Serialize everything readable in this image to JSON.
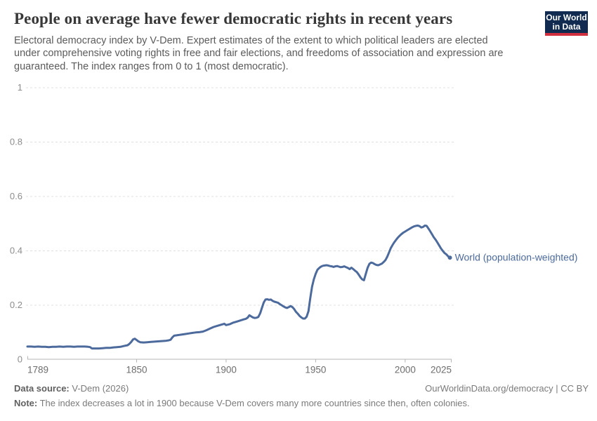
{
  "header": {
    "title": "People on average have fewer democratic rights in recent years",
    "subtitle": "Electoral democracy index by V-Dem. Expert estimates of the extent to which political leaders are elected\nunder comprehensive voting rights in free and fair elections, and freedoms of association and expression are\nguaranteed. The index ranges from 0 to 1 (most democratic).",
    "logo": {
      "line1": "Our World",
      "line2": "in Data",
      "bg_color": "#102a50",
      "accent_color": "#cf2f3f"
    }
  },
  "chart_data": {
    "type": "line",
    "title": "",
    "xlabel": "",
    "ylabel": "",
    "xlim": [
      1789,
      2026
    ],
    "ylim": [
      0,
      1
    ],
    "x_ticks": [
      1789,
      1850,
      1900,
      1950,
      2000,
      2025
    ],
    "y_ticks": [
      0,
      0.2,
      0.4,
      0.6,
      0.8,
      1
    ],
    "grid": "horizontal-dashed",
    "legend_position": "end-of-line-label",
    "series": [
      {
        "name": "World (population-weighted)",
        "color": "#4c6a9c",
        "points": [
          [
            1789,
            0.048
          ],
          [
            1791,
            0.048
          ],
          [
            1793,
            0.047
          ],
          [
            1795,
            0.048
          ],
          [
            1797,
            0.047
          ],
          [
            1799,
            0.047
          ],
          [
            1801,
            0.046
          ],
          [
            1803,
            0.047
          ],
          [
            1805,
            0.047
          ],
          [
            1807,
            0.048
          ],
          [
            1809,
            0.047
          ],
          [
            1811,
            0.048
          ],
          [
            1813,
            0.048
          ],
          [
            1815,
            0.047
          ],
          [
            1817,
            0.048
          ],
          [
            1819,
            0.048
          ],
          [
            1821,
            0.048
          ],
          [
            1823,
            0.047
          ],
          [
            1824,
            0.046
          ],
          [
            1825,
            0.041
          ],
          [
            1827,
            0.041
          ],
          [
            1829,
            0.041
          ],
          [
            1831,
            0.042
          ],
          [
            1833,
            0.043
          ],
          [
            1835,
            0.043
          ],
          [
            1837,
            0.045
          ],
          [
            1839,
            0.046
          ],
          [
            1841,
            0.047
          ],
          [
            1843,
            0.05
          ],
          [
            1845,
            0.053
          ],
          [
            1846,
            0.058
          ],
          [
            1847,
            0.065
          ],
          [
            1848,
            0.074
          ],
          [
            1849,
            0.077
          ],
          [
            1850,
            0.072
          ],
          [
            1851,
            0.067
          ],
          [
            1852,
            0.064
          ],
          [
            1854,
            0.063
          ],
          [
            1856,
            0.064
          ],
          [
            1858,
            0.065
          ],
          [
            1860,
            0.066
          ],
          [
            1862,
            0.067
          ],
          [
            1864,
            0.068
          ],
          [
            1866,
            0.069
          ],
          [
            1868,
            0.071
          ],
          [
            1869,
            0.073
          ],
          [
            1870,
            0.082
          ],
          [
            1871,
            0.088
          ],
          [
            1873,
            0.09
          ],
          [
            1875,
            0.092
          ],
          [
            1877,
            0.094
          ],
          [
            1879,
            0.096
          ],
          [
            1881,
            0.098
          ],
          [
            1883,
            0.1
          ],
          [
            1885,
            0.101
          ],
          [
            1887,
            0.103
          ],
          [
            1889,
            0.108
          ],
          [
            1891,
            0.114
          ],
          [
            1893,
            0.12
          ],
          [
            1895,
            0.124
          ],
          [
            1897,
            0.128
          ],
          [
            1899,
            0.132
          ],
          [
            1900,
            0.127
          ],
          [
            1902,
            0.13
          ],
          [
            1904,
            0.136
          ],
          [
            1906,
            0.14
          ],
          [
            1908,
            0.144
          ],
          [
            1910,
            0.148
          ],
          [
            1911,
            0.15
          ],
          [
            1912,
            0.154
          ],
          [
            1913,
            0.163
          ],
          [
            1914,
            0.159
          ],
          [
            1915,
            0.155
          ],
          [
            1916,
            0.153
          ],
          [
            1917,
            0.154
          ],
          [
            1918,
            0.157
          ],
          [
            1919,
            0.17
          ],
          [
            1920,
            0.19
          ],
          [
            1921,
            0.21
          ],
          [
            1922,
            0.221
          ],
          [
            1923,
            0.222
          ],
          [
            1924,
            0.22
          ],
          [
            1925,
            0.221
          ],
          [
            1926,
            0.216
          ],
          [
            1927,
            0.213
          ],
          [
            1928,
            0.211
          ],
          [
            1929,
            0.209
          ],
          [
            1930,
            0.204
          ],
          [
            1931,
            0.2
          ],
          [
            1932,
            0.196
          ],
          [
            1933,
            0.192
          ],
          [
            1934,
            0.19
          ],
          [
            1935,
            0.193
          ],
          [
            1936,
            0.197
          ],
          [
            1937,
            0.193
          ],
          [
            1938,
            0.186
          ],
          [
            1939,
            0.176
          ],
          [
            1940,
            0.169
          ],
          [
            1941,
            0.161
          ],
          [
            1942,
            0.155
          ],
          [
            1943,
            0.151
          ],
          [
            1944,
            0.151
          ],
          [
            1945,
            0.158
          ],
          [
            1946,
            0.178
          ],
          [
            1947,
            0.225
          ],
          [
            1948,
            0.268
          ],
          [
            1949,
            0.295
          ],
          [
            1950,
            0.315
          ],
          [
            1951,
            0.33
          ],
          [
            1952,
            0.337
          ],
          [
            1953,
            0.342
          ],
          [
            1954,
            0.345
          ],
          [
            1955,
            0.346
          ],
          [
            1956,
            0.347
          ],
          [
            1957,
            0.346
          ],
          [
            1958,
            0.344
          ],
          [
            1959,
            0.343
          ],
          [
            1960,
            0.341
          ],
          [
            1961,
            0.343
          ],
          [
            1962,
            0.344
          ],
          [
            1963,
            0.342
          ],
          [
            1964,
            0.34
          ],
          [
            1965,
            0.341
          ],
          [
            1966,
            0.343
          ],
          [
            1967,
            0.34
          ],
          [
            1968,
            0.337
          ],
          [
            1969,
            0.333
          ],
          [
            1970,
            0.338
          ],
          [
            1971,
            0.333
          ],
          [
            1972,
            0.327
          ],
          [
            1973,
            0.322
          ],
          [
            1974,
            0.313
          ],
          [
            1975,
            0.303
          ],
          [
            1976,
            0.295
          ],
          [
            1977,
            0.292
          ],
          [
            1978,
            0.315
          ],
          [
            1979,
            0.337
          ],
          [
            1980,
            0.352
          ],
          [
            1981,
            0.357
          ],
          [
            1982,
            0.355
          ],
          [
            1983,
            0.351
          ],
          [
            1984,
            0.348
          ],
          [
            1985,
            0.347
          ],
          [
            1986,
            0.35
          ],
          [
            1987,
            0.353
          ],
          [
            1988,
            0.359
          ],
          [
            1989,
            0.366
          ],
          [
            1990,
            0.378
          ],
          [
            1991,
            0.394
          ],
          [
            1992,
            0.41
          ],
          [
            1993,
            0.422
          ],
          [
            1994,
            0.432
          ],
          [
            1995,
            0.441
          ],
          [
            1996,
            0.449
          ],
          [
            1997,
            0.456
          ],
          [
            1998,
            0.462
          ],
          [
            1999,
            0.467
          ],
          [
            2000,
            0.471
          ],
          [
            2001,
            0.475
          ],
          [
            2002,
            0.479
          ],
          [
            2003,
            0.483
          ],
          [
            2004,
            0.487
          ],
          [
            2005,
            0.49
          ],
          [
            2006,
            0.492
          ],
          [
            2007,
            0.493
          ],
          [
            2008,
            0.491
          ],
          [
            2009,
            0.486
          ],
          [
            2010,
            0.488
          ],
          [
            2011,
            0.493
          ],
          [
            2012,
            0.492
          ],
          [
            2013,
            0.482
          ],
          [
            2014,
            0.472
          ],
          [
            2015,
            0.461
          ],
          [
            2016,
            0.45
          ],
          [
            2017,
            0.441
          ],
          [
            2018,
            0.431
          ],
          [
            2019,
            0.42
          ],
          [
            2020,
            0.409
          ],
          [
            2021,
            0.4
          ],
          [
            2022,
            0.392
          ],
          [
            2023,
            0.387
          ],
          [
            2024,
            0.38
          ],
          [
            2025,
            0.375
          ]
        ]
      }
    ]
  },
  "footer": {
    "source_label": "Data source:",
    "source_value": " V-Dem (2026)",
    "citation": "OurWorldinData.org/democracy | CC BY",
    "note_label": "Note:",
    "note_value": " The index decreases a lot in 1900 because V-Dem covers many more countries since then, often colonies."
  }
}
